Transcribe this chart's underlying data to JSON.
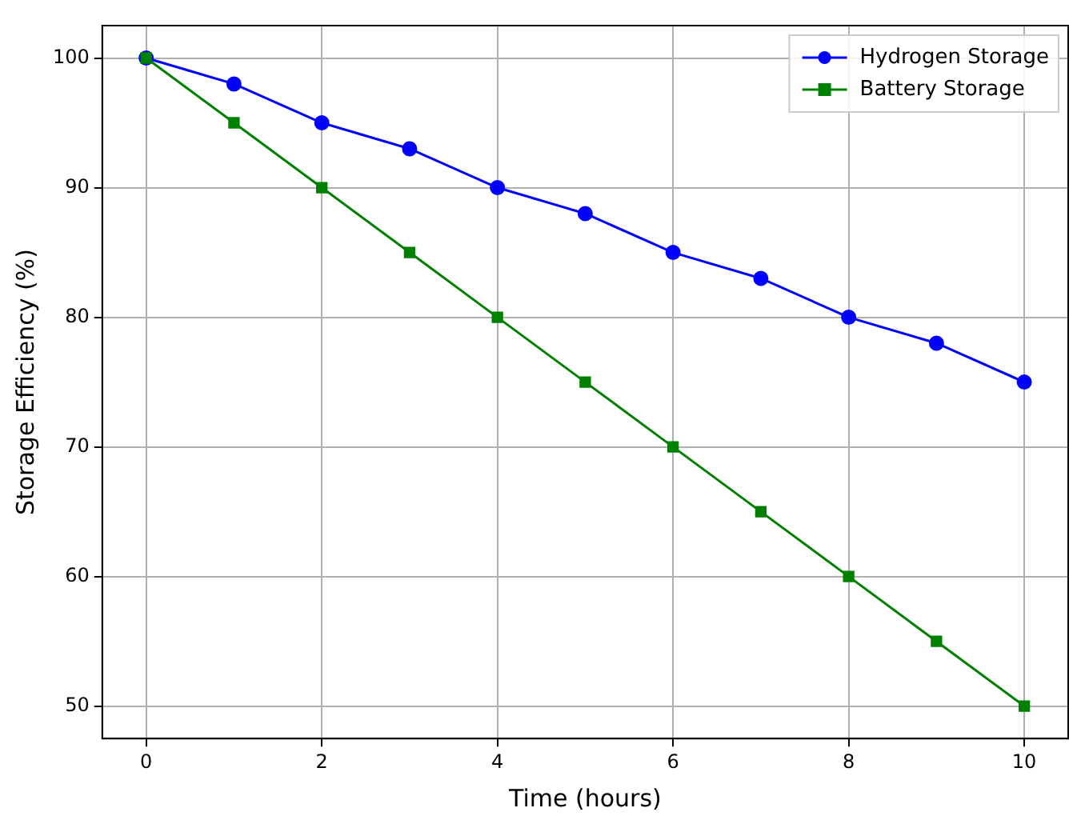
{
  "chart_data": {
    "type": "line",
    "xlabel": "Time (hours)",
    "ylabel": "Storage Efficiency (%)",
    "x": [
      0,
      1,
      2,
      3,
      4,
      5,
      6,
      7,
      8,
      9,
      10
    ],
    "series": [
      {
        "name": "Hydrogen Storage",
        "color": "#0000ff",
        "marker": "circle",
        "values": [
          100,
          98,
          95,
          93,
          90,
          88,
          85,
          83,
          80,
          78,
          75
        ]
      },
      {
        "name": "Battery Storage",
        "color": "#008000",
        "marker": "square",
        "values": [
          100,
          95,
          90,
          85,
          80,
          75,
          70,
          65,
          60,
          55,
          50
        ]
      }
    ],
    "xlim": [
      -0.5,
      10.5
    ],
    "xticks": [
      0,
      2,
      4,
      6,
      8,
      10
    ],
    "ylim": [
      47.5,
      102.5
    ],
    "yticks": [
      50,
      60,
      70,
      80,
      90,
      100
    ],
    "grid": true,
    "legend": "top right",
    "line_style": "solid"
  }
}
